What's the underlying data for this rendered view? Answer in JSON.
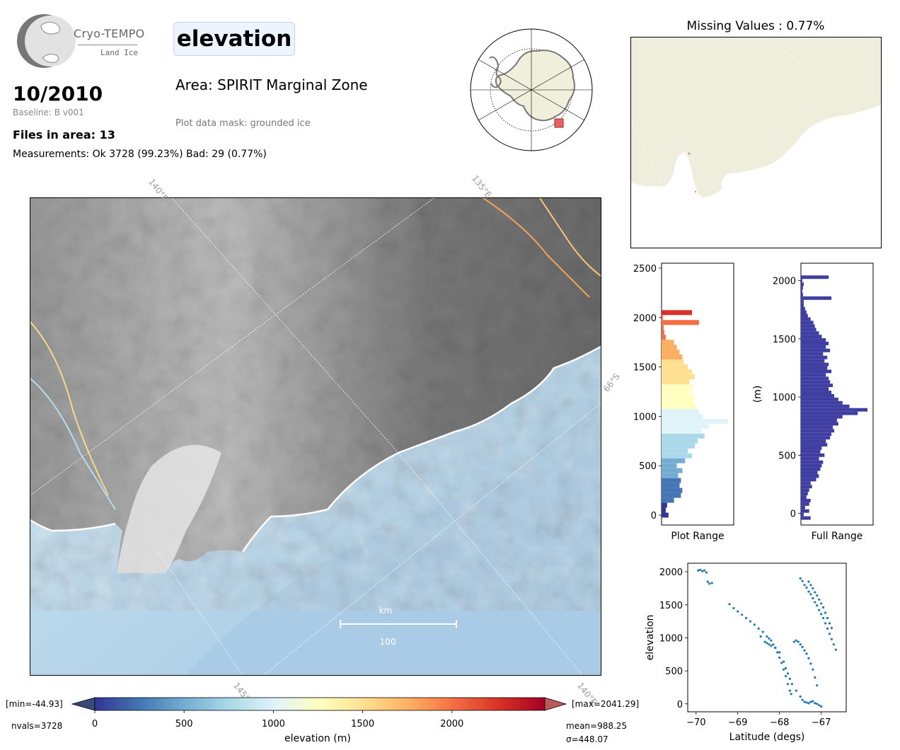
{
  "logo": {
    "name": "Cryo-TEMPO",
    "subtitle": "Land Ice"
  },
  "header": {
    "parameter": "elevation",
    "date": "10/2010",
    "baseline": "Baseline: B v001",
    "files_in_area": "Files in area: 13",
    "measurements": "Measurements: Ok 3728 (99.23%) Bad: 29 (0.77%)",
    "area": "Area: SPIRIT Marginal Zone",
    "plot_mask": "Plot data mask: grounded ice"
  },
  "main_map": {
    "graticule_labels": [
      "140°E",
      "135°E",
      "66°S",
      "145°E",
      "140°E"
    ],
    "scale_bar": {
      "unit": "km",
      "length": "100"
    }
  },
  "missing_values": {
    "title": "Missing Values : 0.77%"
  },
  "colorbar": {
    "min_label": "[min=-44.93]",
    "max_label": "[max=2041.29]",
    "nvals": "nvals=3728",
    "mean": "mean=988.25",
    "sigma": "σ=448.07",
    "label": "elevation (m)",
    "ticks": [
      "0",
      "500",
      "1000",
      "1500",
      "2000"
    ],
    "colors": [
      "#313695",
      "#4575b4",
      "#74add1",
      "#abd9e9",
      "#e0f3f8",
      "#ffffbf",
      "#fee090",
      "#fdae61",
      "#f46d43",
      "#d73027",
      "#a50026"
    ]
  },
  "chart_data": [
    {
      "type": "bar",
      "orientation": "horizontal",
      "name": "Plot Range histogram",
      "xlabel": "Plot Range",
      "ylabel": "",
      "ylim": [
        -100,
        2550
      ],
      "yticks": [
        "0",
        "500",
        "1000",
        "1500",
        "2000",
        "2500"
      ],
      "bin_centers": [
        0,
        50,
        100,
        150,
        200,
        250,
        300,
        350,
        400,
        450,
        500,
        550,
        600,
        650,
        700,
        750,
        800,
        850,
        900,
        950,
        1000,
        1050,
        1100,
        1150,
        1200,
        1250,
        1300,
        1350,
        1400,
        1450,
        1500,
        1550,
        1600,
        1650,
        1700,
        1750,
        1800,
        1850,
        1900,
        1950,
        2000,
        2050
      ],
      "counts": [
        10,
        6,
        8,
        18,
        28,
        30,
        26,
        28,
        24,
        30,
        22,
        34,
        44,
        38,
        48,
        52,
        62,
        58,
        68,
        96,
        60,
        54,
        50,
        46,
        48,
        42,
        46,
        40,
        48,
        44,
        38,
        32,
        30,
        26,
        22,
        18,
        6,
        4,
        3,
        54,
        2,
        44
      ]
    },
    {
      "type": "bar",
      "orientation": "horizontal",
      "name": "Full Range histogram",
      "xlabel": "Full Range",
      "ylabel": "(m)",
      "ylim": [
        -100,
        2150
      ],
      "yticks": [
        "0",
        "500",
        "1000",
        "1500",
        "2000"
      ],
      "bin_centers": [
        -40,
        -10,
        20,
        50,
        80,
        110,
        140,
        170,
        200,
        230,
        260,
        290,
        320,
        350,
        380,
        410,
        440,
        470,
        500,
        530,
        560,
        590,
        620,
        650,
        680,
        710,
        740,
        770,
        800,
        830,
        860,
        890,
        920,
        950,
        980,
        1010,
        1040,
        1070,
        1100,
        1130,
        1160,
        1190,
        1220,
        1250,
        1280,
        1310,
        1340,
        1370,
        1400,
        1430,
        1460,
        1490,
        1520,
        1550,
        1580,
        1610,
        1640,
        1670,
        1700,
        1730,
        1760,
        1790,
        1820,
        1850,
        1880,
        1910,
        1940,
        1970,
        2000,
        2030
      ],
      "counts": [
        14,
        4,
        12,
        6,
        12,
        14,
        8,
        10,
        12,
        16,
        14,
        22,
        26,
        24,
        28,
        30,
        32,
        26,
        34,
        28,
        30,
        38,
        36,
        42,
        44,
        48,
        46,
        54,
        52,
        60,
        82,
        96,
        70,
        60,
        54,
        48,
        44,
        40,
        46,
        42,
        40,
        36,
        44,
        38,
        40,
        34,
        38,
        32,
        42,
        36,
        40,
        36,
        30,
        26,
        22,
        20,
        18,
        14,
        10,
        8,
        6,
        4,
        4,
        44,
        3,
        2,
        3,
        4,
        2,
        40
      ]
    },
    {
      "type": "scatter",
      "name": "Elevation vs latitude",
      "xlabel": "Latitude (degs)",
      "ylabel": "elevation",
      "xlim": [
        -70.2,
        -66.4
      ],
      "ylim": [
        -120,
        2130
      ],
      "xticks": [
        "−70",
        "−69",
        "−68",
        "−67"
      ],
      "yticks": [
        "0",
        "500",
        "1000",
        "1500",
        "2000"
      ],
      "x": [
        -69.95,
        -69.9,
        -69.85,
        -69.8,
        -69.75,
        -69.72,
        -69.68,
        -69.62,
        -69.2,
        -69.1,
        -69.0,
        -68.9,
        -68.8,
        -68.7,
        -68.6,
        -68.5,
        -68.4,
        -68.3,
        -68.25,
        -68.2,
        -68.15,
        -68.1,
        -68.05,
        -68.0,
        -67.95,
        -67.9,
        -67.85,
        -67.8,
        -67.75,
        -67.72,
        -68.45,
        -68.35,
        -68.3,
        -68.25,
        -68.2,
        -68.1,
        -68.0,
        -67.9,
        -67.85,
        -67.8,
        -67.75,
        -67.7,
        -67.6,
        -67.5,
        -67.45,
        -67.4,
        -67.35,
        -67.3,
        -67.25,
        -67.2,
        -67.15,
        -67.1,
        -67.05,
        -67.0,
        -67.5,
        -67.45,
        -67.4,
        -67.35,
        -67.3,
        -67.25,
        -67.2,
        -67.15,
        -67.1,
        -67.05,
        -67.0,
        -66.95,
        -66.9,
        -66.85,
        -66.8,
        -66.75,
        -66.7,
        -66.65,
        -67.3,
        -67.25,
        -67.2,
        -67.15,
        -67.1,
        -67.05,
        -67.0,
        -66.95,
        -66.9,
        -66.85,
        -66.8,
        -66.75,
        -67.65,
        -67.6,
        -67.55,
        -67.5,
        -67.45,
        -67.4,
        -67.35,
        -67.3,
        -67.25,
        -67.2,
        -67.15,
        -67.1
      ],
      "y": [
        2020,
        2030,
        2010,
        2020,
        1990,
        1850,
        1820,
        1830,
        1510,
        1450,
        1400,
        1350,
        1300,
        1250,
        1200,
        1140,
        1090,
        1020,
        990,
        960,
        900,
        850,
        780,
        700,
        620,
        520,
        420,
        300,
        200,
        150,
        1020,
        940,
        920,
        900,
        880,
        850,
        780,
        640,
        540,
        460,
        380,
        300,
        200,
        110,
        60,
        30,
        20,
        10,
        30,
        40,
        10,
        0,
        -20,
        -40,
        1900,
        1860,
        1800,
        1760,
        1700,
        1660,
        1600,
        1540,
        1490,
        1420,
        1360,
        1300,
        1220,
        1140,
        1060,
        980,
        900,
        820,
        1850,
        1800,
        1750,
        1690,
        1640,
        1580,
        1520,
        1460,
        1380,
        1300,
        1220,
        1150,
        940,
        960,
        940,
        900,
        860,
        810,
        760,
        690,
        610,
        520,
        400,
        280
      ]
    }
  ]
}
